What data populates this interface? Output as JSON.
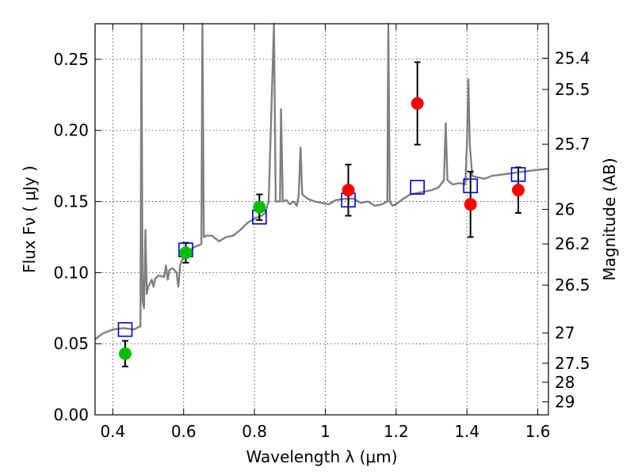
{
  "chart_data": {
    "type": "scatter",
    "xlabel": "Wavelength  λ (μm)",
    "ylabel": "Flux  Fν  ( μJy )",
    "ylabel_right": "Magnitude (AB)",
    "xlim": [
      0.35,
      1.63
    ],
    "ylim": [
      0.0,
      0.275
    ],
    "grid": true,
    "x_ticks": [
      0.4,
      0.6,
      0.8,
      1.0,
      1.2,
      1.4,
      1.6
    ],
    "x_tick_labels": [
      "0.4",
      "0.6",
      "0.8",
      "1",
      "1.2",
      "1.4",
      "1.6"
    ],
    "y_ticks": [
      0.0,
      0.05,
      0.1,
      0.15,
      0.2,
      0.25
    ],
    "y_tick_labels": [
      "0.00",
      "0.05",
      "0.10",
      "0.15",
      "0.20",
      "0.25"
    ],
    "right_ticks": [
      {
        "label": "25.4",
        "flux": 0.2508
      },
      {
        "label": "25.5",
        "flux": 0.2288
      },
      {
        "label": "25.7",
        "flux": 0.1903
      },
      {
        "label": "26",
        "flux": 0.1445
      },
      {
        "label": "26.2",
        "flux": 0.1202
      },
      {
        "label": "26.5",
        "flux": 0.0912
      },
      {
        "label": "27",
        "flux": 0.0575
      },
      {
        "label": "27.5",
        "flux": 0.0363
      },
      {
        "label": "28",
        "flux": 0.0229
      },
      {
        "label": "29",
        "flux": 0.0091
      }
    ],
    "series": [
      {
        "marker": "circle",
        "color": "#00c000",
        "points": [
          {
            "x": 0.435,
            "y": 0.043,
            "err": 0.009
          },
          {
            "x": 0.606,
            "y": 0.114,
            "err": 0.007
          },
          {
            "x": 0.814,
            "y": 0.146,
            "err": 0.009
          }
        ]
      },
      {
        "marker": "circle",
        "color": "#ff0000",
        "points": [
          {
            "x": 1.065,
            "y": 0.158,
            "err": 0.018
          },
          {
            "x": 1.26,
            "y": 0.219,
            "err": 0.029
          },
          {
            "x": 1.41,
            "y": 0.148,
            "err": 0.023
          },
          {
            "x": 1.545,
            "y": 0.158,
            "err": 0.016
          }
        ]
      },
      {
        "marker": "open-square",
        "color": "#0000cc",
        "points": [
          {
            "x": 0.435,
            "y": 0.06
          },
          {
            "x": 0.606,
            "y": 0.116
          },
          {
            "x": 0.814,
            "y": 0.139
          },
          {
            "x": 1.065,
            "y": 0.151
          },
          {
            "x": 1.26,
            "y": 0.16
          },
          {
            "x": 1.41,
            "y": 0.161
          },
          {
            "x": 1.545,
            "y": 0.169
          }
        ]
      },
      {
        "marker": "line",
        "color": "#808080",
        "points": [
          [
            0.35,
            0.053
          ],
          [
            0.37,
            0.057
          ],
          [
            0.4,
            0.06
          ],
          [
            0.43,
            0.061
          ],
          [
            0.46,
            0.06
          ],
          [
            0.475,
            0.062
          ],
          [
            0.478,
            0.062
          ],
          [
            0.481,
            0.28
          ],
          [
            0.484,
            0.08
          ],
          [
            0.488,
            0.075
          ],
          [
            0.492,
            0.13
          ],
          [
            0.496,
            0.085
          ],
          [
            0.5,
            0.09
          ],
          [
            0.51,
            0.095
          ],
          [
            0.515,
            0.09
          ],
          [
            0.52,
            0.096
          ],
          [
            0.53,
            0.098
          ],
          [
            0.545,
            0.097
          ],
          [
            0.55,
            0.105
          ],
          [
            0.555,
            0.095
          ],
          [
            0.56,
            0.102
          ],
          [
            0.57,
            0.103
          ],
          [
            0.58,
            0.1
          ],
          [
            0.585,
            0.09
          ],
          [
            0.59,
            0.105
          ],
          [
            0.6,
            0.112
          ],
          [
            0.62,
            0.116
          ],
          [
            0.63,
            0.118
          ],
          [
            0.64,
            0.119
          ],
          [
            0.65,
            0.12
          ],
          [
            0.653,
            0.28
          ],
          [
            0.657,
            0.125
          ],
          [
            0.665,
            0.126
          ],
          [
            0.68,
            0.126
          ],
          [
            0.7,
            0.122
          ],
          [
            0.72,
            0.125
          ],
          [
            0.74,
            0.126
          ],
          [
            0.76,
            0.13
          ],
          [
            0.78,
            0.135
          ],
          [
            0.8,
            0.138
          ],
          [
            0.82,
            0.14
          ],
          [
            0.83,
            0.142
          ],
          [
            0.84,
            0.15
          ],
          [
            0.855,
            0.28
          ],
          [
            0.86,
            0.15
          ],
          [
            0.872,
            0.15
          ],
          [
            0.875,
            0.215
          ],
          [
            0.88,
            0.15
          ],
          [
            0.89,
            0.151
          ],
          [
            0.9,
            0.148
          ],
          [
            0.91,
            0.15
          ],
          [
            0.92,
            0.147
          ],
          [
            0.925,
            0.155
          ],
          [
            0.93,
            0.188
          ],
          [
            0.935,
            0.155
          ],
          [
            0.95,
            0.152
          ],
          [
            0.97,
            0.15
          ],
          [
            0.99,
            0.149
          ],
          [
            1.01,
            0.148
          ],
          [
            1.03,
            0.151
          ],
          [
            1.06,
            0.152
          ],
          [
            1.08,
            0.152
          ],
          [
            1.1,
            0.149
          ],
          [
            1.12,
            0.15
          ],
          [
            1.14,
            0.147
          ],
          [
            1.16,
            0.148
          ],
          [
            1.175,
            0.15
          ],
          [
            1.178,
            0.28
          ],
          [
            1.182,
            0.15
          ],
          [
            1.19,
            0.147
          ],
          [
            1.2,
            0.148
          ],
          [
            1.22,
            0.152
          ],
          [
            1.24,
            0.155
          ],
          [
            1.26,
            0.156
          ],
          [
            1.28,
            0.157
          ],
          [
            1.3,
            0.158
          ],
          [
            1.32,
            0.16
          ],
          [
            1.335,
            0.165
          ],
          [
            1.34,
            0.205
          ],
          [
            1.345,
            0.165
          ],
          [
            1.36,
            0.162
          ],
          [
            1.38,
            0.163
          ],
          [
            1.395,
            0.162
          ],
          [
            1.4,
            0.19
          ],
          [
            1.404,
            0.236
          ],
          [
            1.408,
            0.19
          ],
          [
            1.415,
            0.168
          ],
          [
            1.43,
            0.167
          ],
          [
            1.45,
            0.166
          ],
          [
            1.47,
            0.168
          ],
          [
            1.5,
            0.169
          ],
          [
            1.53,
            0.17
          ],
          [
            1.56,
            0.171
          ],
          [
            1.59,
            0.172
          ],
          [
            1.63,
            0.173
          ]
        ]
      }
    ]
  }
}
